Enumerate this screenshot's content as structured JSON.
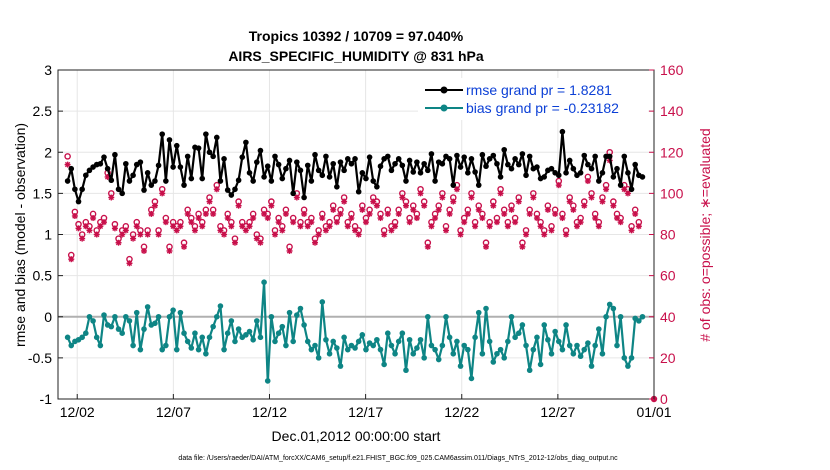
{
  "chart_data": {
    "type": "line",
    "title": "Tropics 10392 / 10709 = 97.040%",
    "subtitle": "AIRS_SPECIFIC_HUMIDITY @ 831 hPa",
    "xlabel": "Dec.01,2012 00:00:00 start",
    "ylabel": "rmse and bias (model - observation)",
    "ylabel_right": "# of obs: o=possible; ∗=evaluated",
    "footnote": "data file: /Users/raeder/DAI/ATM_forcXX/CAM6_setup/f.e21.FHIST_BGC.f09_025.CAM6assim.011/Diags_NTrS_2012-12/obs_diag_output.nc",
    "x_ticks": [
      "12/02",
      "12/07",
      "12/12",
      "12/17",
      "12/22",
      "12/27",
      "01/01"
    ],
    "x_tick_days": [
      1,
      6,
      11,
      16,
      21,
      26,
      31
    ],
    "xlim_days": [
      0,
      31
    ],
    "ylim": [
      -1,
      3
    ],
    "y_ticks": [
      "-1",
      "-0.5",
      "0",
      "0.5",
      "1",
      "1.5",
      "2",
      "2.5",
      "3"
    ],
    "ylim_right": [
      0,
      160
    ],
    "y_ticks_right": [
      "0",
      "20",
      "40",
      "60",
      "80",
      "100",
      "120",
      "140",
      "160"
    ],
    "legend": [
      {
        "name": "rmse grand pr = 1.8281",
        "color": "#000000"
      },
      {
        "name": "bias grand pr = -0.23182",
        "color": "#0e8585"
      }
    ],
    "series": [
      {
        "name": "rmse",
        "color": "#000000",
        "values": [
          1.65,
          1.8,
          1.55,
          1.4,
          1.55,
          1.72,
          1.78,
          1.82,
          1.85,
          1.86,
          1.94,
          1.8,
          1.66,
          1.97,
          1.55,
          1.5,
          1.86,
          1.65,
          1.72,
          1.85,
          1.88,
          1.54,
          1.75,
          1.6,
          1.65,
          1.84,
          2.22,
          1.65,
          2.15,
          1.82,
          2.08,
          1.82,
          1.6,
          1.95,
          1.68,
          2.06,
          2.05,
          1.68,
          2.22,
          2.0,
          1.95,
          2.18,
          1.65,
          1.92,
          1.54,
          1.48,
          1.55,
          1.66,
          1.94,
          2.12,
          1.75,
          1.65,
          1.88,
          2.02,
          1.7,
          1.83,
          1.65,
          1.95,
          1.85,
          1.68,
          1.8,
          1.9,
          1.5,
          1.88,
          1.78,
          1.45,
          1.84,
          1.65,
          1.97,
          1.78,
          1.72,
          1.95,
          1.7,
          1.86,
          1.58,
          1.88,
          1.78,
          1.92,
          1.86,
          1.92,
          1.52,
          1.75,
          1.68,
          1.94,
          1.65,
          1.58,
          1.83,
          1.92,
          1.95,
          1.78,
          1.86,
          1.92,
          1.84,
          1.65,
          1.9,
          1.76,
          1.88,
          1.75,
          1.86,
          1.78,
          1.98,
          1.65,
          1.88,
          1.86,
          1.95,
          1.92,
          1.6,
          1.96,
          1.82,
          1.94,
          1.75,
          1.92,
          1.76,
          1.6,
          1.97,
          1.83,
          1.92,
          1.96,
          1.86,
          1.7,
          2.03,
          1.85,
          1.8,
          1.92,
          1.85,
          1.98,
          1.72,
          1.95,
          1.8,
          1.82,
          1.68,
          1.7,
          1.78,
          1.8,
          1.75,
          1.72,
          2.25,
          1.75,
          1.9,
          1.8,
          1.72,
          1.75,
          1.96,
          1.85,
          1.8,
          1.95,
          1.65,
          1.75,
          1.95,
          1.95,
          1.7,
          1.8,
          1.6,
          1.95,
          1.75,
          1.55,
          1.85,
          1.72,
          1.7
        ]
      },
      {
        "name": "bias",
        "color": "#0e8585",
        "values": [
          -0.25,
          -0.35,
          -0.3,
          -0.28,
          -0.25,
          -0.2,
          0.0,
          -0.05,
          -0.25,
          -0.35,
          0.02,
          -0.1,
          -0.12,
          0.0,
          -0.15,
          -0.2,
          0.0,
          -0.05,
          -0.35,
          0.05,
          -0.4,
          -0.15,
          0.12,
          -0.1,
          -0.08,
          0.0,
          -0.4,
          -0.35,
          0.0,
          0.08,
          -0.4,
          0.05,
          -0.2,
          -0.3,
          -0.38,
          -0.2,
          -0.4,
          -0.25,
          -0.45,
          -0.25,
          -0.12,
          0.0,
          0.13,
          -0.4,
          -0.2,
          -0.05,
          -0.3,
          -0.15,
          -0.25,
          -0.22,
          -0.18,
          -0.28,
          -0.05,
          -0.25,
          0.42,
          -0.78,
          0.0,
          -0.3,
          -0.2,
          -0.12,
          -0.35,
          0.05,
          -0.3,
          0.02,
          0.1,
          -0.1,
          -0.3,
          -0.4,
          -0.35,
          -0.5,
          0.18,
          -0.28,
          -0.45,
          -0.3,
          -0.38,
          -0.6,
          -0.25,
          -0.4,
          -0.35,
          -0.38,
          -0.3,
          -0.22,
          -0.4,
          -0.32,
          -0.35,
          -0.28,
          -0.4,
          -0.58,
          -0.2,
          -0.35,
          -0.45,
          -0.3,
          -0.2,
          -0.65,
          -0.28,
          -0.45,
          -0.38,
          -0.28,
          -0.5,
          0.0,
          -0.35,
          -0.4,
          -0.52,
          -0.35,
          0.0,
          -0.25,
          -0.45,
          -0.3,
          -0.6,
          -0.35,
          -0.4,
          -0.75,
          -0.25,
          0.05,
          -0.45,
          0.1,
          -0.3,
          -0.55,
          -0.45,
          -0.4,
          -0.5,
          -0.3,
          0.0,
          -0.25,
          -0.2,
          -0.1,
          -0.35,
          -0.65,
          -0.4,
          -0.25,
          -0.58,
          -0.1,
          -0.28,
          -0.45,
          -0.18,
          -0.3,
          -0.4,
          -0.1,
          -0.35,
          -0.45,
          -0.35,
          -0.48,
          -0.4,
          -0.32,
          -0.6,
          -0.35,
          -0.15,
          -0.45,
          0.0,
          0.15,
          0.1,
          -0.35,
          0.0,
          -0.5,
          -0.6,
          -0.5,
          -0.02,
          -0.05,
          0.0
        ]
      },
      {
        "name": "# of obs possible (o)",
        "color": "#c8104b",
        "axis": "right",
        "values": [
          118,
          70,
          91,
          85,
          80,
          86,
          84,
          90,
          82,
          86,
          88,
          110,
          100,
          85,
          78,
          82,
          84,
          68,
          80,
          86,
          82,
          74,
          82,
          92,
          96,
          82,
          102,
          88,
          74,
          86,
          84,
          86,
          76,
          92,
          88,
          84,
          90,
          86,
          92,
          98,
          92,
          104,
          84,
          82,
          90,
          86,
          78,
          96,
          86,
          84,
          86,
          90,
          80,
          78,
          92,
          90,
          96,
          82,
          88,
          84,
          92,
          74,
          88,
          100,
          86,
          92,
          86,
          88,
          78,
          82,
          90,
          84,
          86,
          94,
          88,
          92,
          98,
          86,
          90,
          84,
          82,
          94,
          88,
          92,
          98,
          96,
          90,
          82,
          92,
          84,
          86,
          92,
          100,
          96,
          88,
          94,
          90,
          102,
          96,
          76,
          86,
          90,
          94,
          100,
          84,
          92,
          98,
          104,
          82,
          88,
          92,
          100,
          86,
          94,
          90,
          76,
          86,
          96,
          88,
          102,
          92,
          86,
          94,
          88,
          98,
          76,
          82,
          92,
          100,
          90,
          86,
          82,
          94,
          84,
          92,
          106,
          90,
          82,
          98,
          94,
          86,
          88,
          96,
          108,
          100,
          90,
          86,
          98,
          104,
          120,
          96,
          90,
          88,
          104,
          102,
          84,
          92,
          86
        ]
      },
      {
        "name": "# of obs evaluated (∗)",
        "color": "#c8104b",
        "axis": "right",
        "values": [
          114,
          68,
          89,
          83,
          78,
          84,
          82,
          88,
          80,
          84,
          86,
          108,
          98,
          83,
          76,
          80,
          82,
          66,
          78,
          84,
          80,
          72,
          80,
          90,
          94,
          80,
          100,
          86,
          72,
          84,
          82,
          84,
          74,
          90,
          86,
          82,
          88,
          84,
          90,
          96,
          90,
          102,
          82,
          80,
          88,
          84,
          76,
          94,
          84,
          82,
          84,
          88,
          78,
          76,
          90,
          88,
          94,
          80,
          86,
          82,
          90,
          72,
          86,
          98,
          84,
          90,
          84,
          86,
          76,
          80,
          88,
          82,
          84,
          92,
          86,
          90,
          96,
          84,
          88,
          82,
          80,
          92,
          86,
          90,
          96,
          94,
          88,
          80,
          90,
          82,
          84,
          90,
          98,
          94,
          86,
          92,
          88,
          100,
          94,
          74,
          84,
          88,
          92,
          98,
          82,
          90,
          96,
          102,
          80,
          86,
          90,
          98,
          84,
          92,
          88,
          74,
          84,
          94,
          86,
          100,
          90,
          84,
          92,
          86,
          96,
          74,
          80,
          90,
          98,
          88,
          84,
          80,
          92,
          82,
          90,
          104,
          88,
          80,
          96,
          92,
          84,
          86,
          94,
          106,
          98,
          88,
          84,
          96,
          102,
          116,
          94,
          88,
          86,
          102,
          100,
          82,
          90,
          84
        ]
      }
    ]
  }
}
